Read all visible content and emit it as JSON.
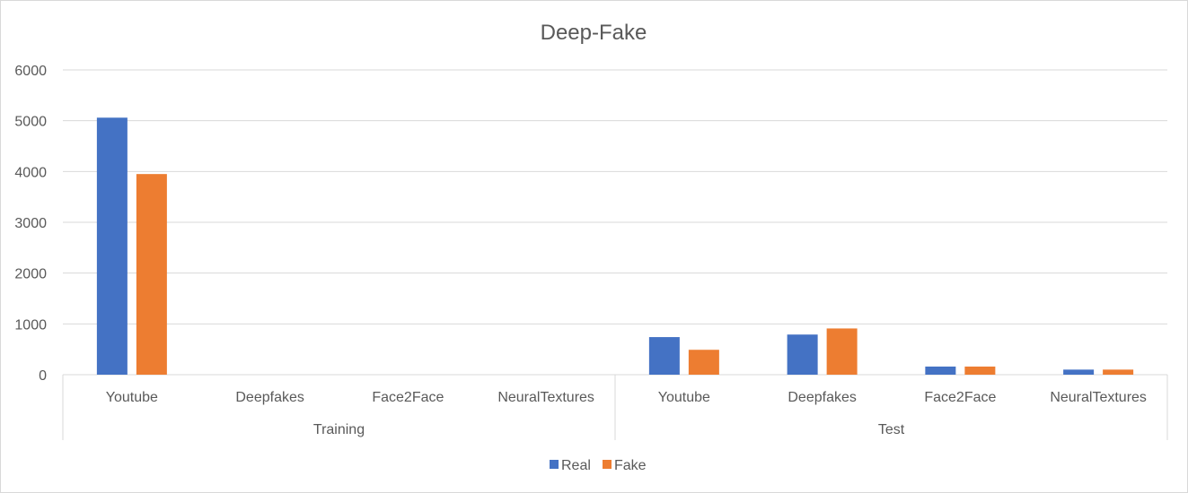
{
  "chart_data": {
    "type": "bar",
    "title": "Deep-Fake",
    "xlabel": "",
    "ylabel": "",
    "groups": [
      {
        "label": "Training",
        "categories": [
          "Youtube",
          "Deepfakes",
          "Face2Face",
          "NeuralTextures"
        ]
      },
      {
        "label": "Test",
        "categories": [
          "Youtube",
          "Deepfakes",
          "Face2Face",
          "NeuralTextures"
        ]
      }
    ],
    "series": [
      {
        "name": "Real",
        "color": "#4472c4",
        "values": [
          5060,
          0,
          0,
          0,
          740,
          790,
          160,
          100
        ]
      },
      {
        "name": "Fake",
        "color": "#ed7d31",
        "values": [
          3950,
          0,
          0,
          0,
          490,
          910,
          160,
          100
        ]
      }
    ],
    "ylim": [
      0,
      6000
    ],
    "yticks": [
      "0",
      "1000",
      "2000",
      "3000",
      "4000",
      "5000",
      "6000"
    ],
    "grid": true,
    "legend_position": "bottom"
  }
}
